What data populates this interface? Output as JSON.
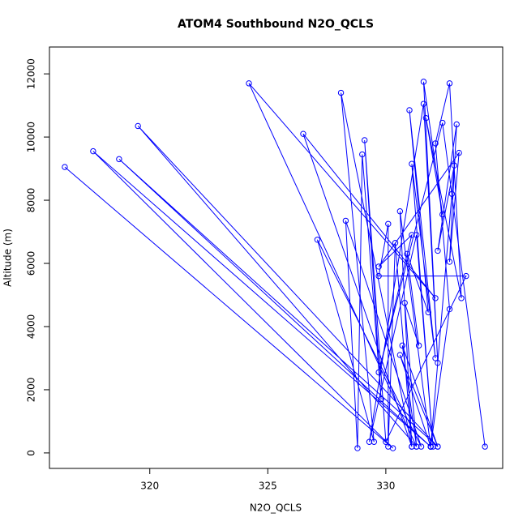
{
  "chart_data": {
    "type": "line",
    "title": "ATOM4 Southbound N2O_QCLS",
    "x_label": "N2O_QCLS",
    "y_label": "Altitude (m)",
    "color": "#0000ff",
    "marker": "circle",
    "x": [
      316.4,
      330.3,
      317.6,
      331.9,
      318.7,
      332.2,
      319.5,
      331.3,
      324.2,
      332.1,
      326.5,
      331.1,
      328.1,
      329.5,
      327.1,
      331.5,
      328.3,
      328.8,
      329.0,
      329.8,
      329.1,
      330.0,
      333.4,
      329.7,
      330.1,
      330.1,
      330.4,
      331.1,
      330.6,
      331.9,
      330.6,
      332.2,
      330.7,
      331.3,
      330.8,
      331.4,
      330.9,
      331.8,
      331.0,
      332.1,
      331.1,
      332.0,
      331.3,
      329.3,
      331.6,
      332.2,
      331.6,
      332.4,
      331.7,
      333.2,
      332.7,
      332.1,
      332.7,
      331.9,
      332.8,
      331.9,
      332.9,
      332.2,
      333.0,
      332.7,
      333.1,
      329.7,
      331.1,
      329.7,
      332.4,
      334.2
    ],
    "values": [
      9050,
      150,
      9550,
      200,
      9300,
      200,
      10350,
      200,
      11700,
      4900,
      10100,
      200,
      11400,
      350,
      6750,
      200,
      7350,
      150,
      9450,
      1700,
      9900,
      350,
      5600,
      5600,
      7250,
      200,
      6650,
      200,
      7650,
      200,
      3100,
      200,
      3400,
      200,
      4750,
      3400,
      6300,
      4450,
      10850,
      3000,
      9150,
      200,
      6900,
      350,
      11050,
      2850,
      11750,
      7550,
      10600,
      4900,
      11700,
      9800,
      4550,
      200,
      8200,
      200,
      9100,
      6400,
      10400,
      6050,
      9500,
      5900,
      6900,
      2550,
      10450,
      200
    ],
    "xlim": [
      315.75,
      334.95
    ],
    "ylim": [
      -490,
      12850
    ],
    "xticks": [
      320,
      325,
      330
    ],
    "yticks": [
      0,
      2000,
      4000,
      6000,
      8000,
      10000,
      12000
    ]
  }
}
